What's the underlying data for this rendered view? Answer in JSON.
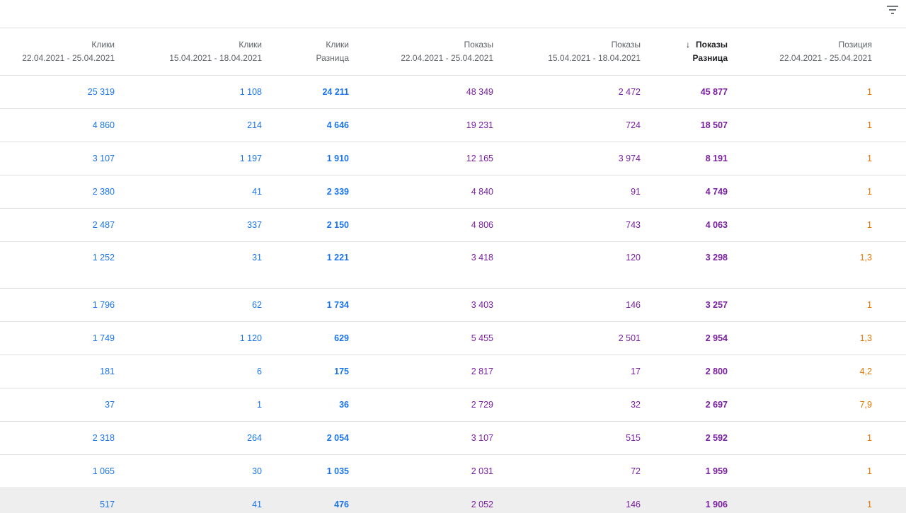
{
  "toolbar": {
    "filter_icon": "filter-list-icon"
  },
  "colors": {
    "clicks": "#1a73e8",
    "impressions": "#7b1fa2",
    "position": "#e37400"
  },
  "columns": [
    {
      "title": "Клики",
      "sub": "22.04.2021 - 25.04.2021"
    },
    {
      "title": "Клики",
      "sub": "15.04.2021 - 18.04.2021"
    },
    {
      "title": "Клики",
      "sub": "Разница"
    },
    {
      "title": "Показы",
      "sub": "22.04.2021 - 25.04.2021"
    },
    {
      "title": "Показы",
      "sub": "15.04.2021 - 18.04.2021"
    },
    {
      "title": "Показы",
      "sub": "Разница"
    },
    {
      "title": "Позиция",
      "sub": "22.04.2021 - 25.04.2021"
    }
  ],
  "sort": {
    "column": 5,
    "direction": "desc",
    "icon": "arrow-down-icon",
    "glyph": "🡓"
  },
  "rows": [
    [
      "25 319",
      "1 108",
      "24 211",
      "48 349",
      "2 472",
      "45 877",
      "1"
    ],
    [
      "4 860",
      "214",
      "4 646",
      "19 231",
      "724",
      "18 507",
      "1"
    ],
    [
      "3 107",
      "1 197",
      "1 910",
      "12 165",
      "3 974",
      "8 191",
      "1"
    ],
    [
      "2 380",
      "41",
      "2 339",
      "4 840",
      "91",
      "4 749",
      "1"
    ],
    [
      "2 487",
      "337",
      "2 150",
      "4 806",
      "743",
      "4 063",
      "1"
    ],
    [
      "1 252",
      "31",
      "1 221",
      "3 418",
      "120",
      "3 298",
      "1,3"
    ],
    [
      "1 796",
      "62",
      "1 734",
      "3 403",
      "146",
      "3 257",
      "1"
    ],
    [
      "1 749",
      "1 120",
      "629",
      "5 455",
      "2 501",
      "2 954",
      "1,3"
    ],
    [
      "181",
      "6",
      "175",
      "2 817",
      "17",
      "2 800",
      "4,2"
    ],
    [
      "37",
      "1",
      "36",
      "2 729",
      "32",
      "2 697",
      "7,9"
    ],
    [
      "2 318",
      "264",
      "2 054",
      "3 107",
      "515",
      "2 592",
      "1"
    ],
    [
      "1 065",
      "30",
      "1 035",
      "2 031",
      "72",
      "1 959",
      "1"
    ],
    [
      "517",
      "41",
      "476",
      "2 052",
      "146",
      "1 906",
      "1"
    ]
  ]
}
